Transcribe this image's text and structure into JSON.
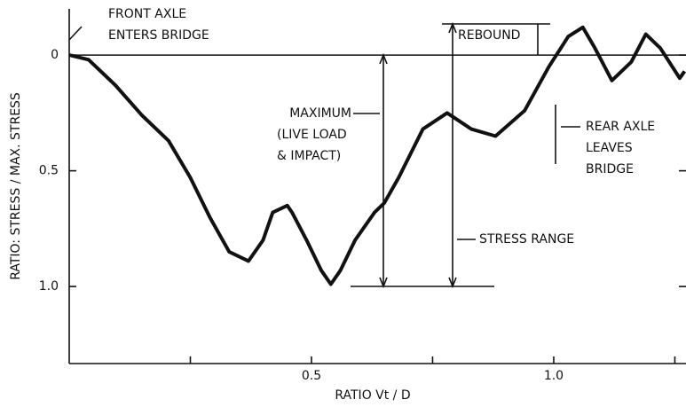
{
  "chart_data": {
    "type": "line",
    "xlabel": "RATIO Vt / D",
    "ylabel": "RATIO: STRESS / MAX. STRESS",
    "xlim": [
      0,
      1.273
    ],
    "ylim": [
      1.333,
      -0.238
    ],
    "xticks": [
      0.5,
      {
        "value": 1,
        "label": "1.0"
      }
    ],
    "xminor_ticks": [
      0.25,
      0.75,
      1.25
    ],
    "yticks": [
      0,
      0.5,
      {
        "value": 1,
        "label": "1.0"
      }
    ],
    "annotations": [
      {
        "lines": [
          "FRONT AXLE",
          "ENTERS BRIDGE"
        ]
      },
      {
        "lines": [
          "REBOUND"
        ]
      },
      {
        "lines": [
          "MAXIMUM",
          "(LIVE LOAD",
          "& IMPACT)"
        ]
      },
      {
        "lines": [
          "REAR AXLE",
          "LEAVES",
          "BRIDGE"
        ]
      },
      {
        "lines": [
          "STRESS RANGE"
        ]
      }
    ],
    "series": [
      {
        "color": "#111111",
        "x": [
          0,
          0.04,
          0.095,
          0.15,
          0.205,
          0.25,
          0.29,
          0.33,
          0.37,
          0.4,
          0.42,
          0.45,
          0.46,
          0.49,
          0.52,
          0.54,
          0.56,
          0.59,
          0.63,
          0.65,
          0.68,
          0.73,
          0.78,
          0.83,
          0.88,
          0.94,
          0.99,
          1.03,
          1.06,
          1.085,
          1.12,
          1.16,
          1.19,
          1.22,
          1.26,
          1.27
        ],
        "values": [
          0,
          0.02,
          0.13,
          0.26,
          0.37,
          0.53,
          0.7,
          0.85,
          0.89,
          0.8,
          0.68,
          0.65,
          0.68,
          0.8,
          0.93,
          0.99,
          0.93,
          0.8,
          0.68,
          0.64,
          0.53,
          0.32,
          0.25,
          0.32,
          0.35,
          0.24,
          0.05,
          -0.08,
          -0.12,
          -0.03,
          0.11,
          0.03,
          -0.09,
          -0.03,
          0.1,
          0.07
        ]
      }
    ]
  }
}
